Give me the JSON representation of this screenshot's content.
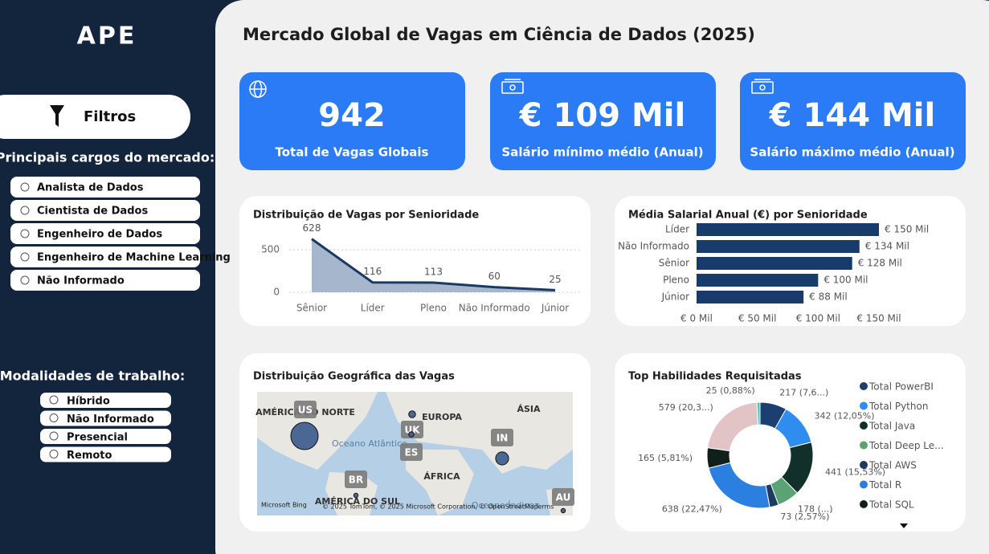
{
  "sidebar": {
    "logo": "APE",
    "filter_button": "Filtros",
    "roles": {
      "title": "Principais cargos do mercado:",
      "options": [
        "Analista de Dados",
        "Cientista de Dados",
        "Engenheiro de Dados",
        "Engenheiro de Machine Learning",
        "Não Informado"
      ]
    },
    "modes": {
      "title": "Modalidades de trabalho:",
      "options": [
        "Híbrido",
        "Não Informado",
        "Presencial",
        "Remoto"
      ]
    }
  },
  "title": "Mercado Global de Vagas em Ciência de Dados (2025)",
  "kpis": [
    {
      "value": 942,
      "label": "Total de Vagas Globais"
    },
    {
      "value": "€ 109 Mil",
      "label": "Salário mínimo médio (Anual)"
    },
    {
      "value": "€ 144 Mil",
      "label": "Salário máximo médio (Anual)"
    }
  ],
  "chart_data": [
    {
      "type": "area",
      "title": "Distribuição de Vagas por Senioridade",
      "categories": [
        "Sênior",
        "Líder",
        "Pleno",
        "Não Informado",
        "Júnior"
      ],
      "values": [
        628,
        116,
        113,
        60,
        25
      ],
      "color": "#1a3a63",
      "ylim": [
        0,
        700
      ],
      "yticks": [
        0,
        500
      ],
      "grid": true
    },
    {
      "type": "hbar",
      "title": "Média Salarial Anual (€) por Senioridade",
      "categories": [
        "Líder",
        "Não Informado",
        "Sênior",
        "Pleno",
        "Júnior"
      ],
      "values": [
        150,
        134,
        128,
        100,
        88
      ],
      "value_labels": [
        "€ 150 Mil",
        "€ 134 Mil",
        "€ 128 Mil",
        "€ 100 Mil",
        "€ 88 Mil"
      ],
      "color": "#173c6b",
      "xlim": [
        0,
        150
      ],
      "xticks": [
        {
          "value": 0,
          "label": "€ 0 Mil"
        },
        {
          "value": 50,
          "label": "€ 50 Mil"
        },
        {
          "value": 100,
          "label": "€ 100 Mil"
        },
        {
          "value": 150,
          "label": "€ 150 Mil"
        }
      ]
    },
    {
      "type": "map",
      "title": "Distribuição Geográfica das Vagas",
      "regions": [
        "AMÉRICA DO NORTE",
        "EUROPA",
        "ÁSIA",
        "ÁFRICA",
        "AMÉRICA DO SUL",
        "Oceano Atlântico",
        "Oceano Índico"
      ],
      "points": [
        {
          "name": "US",
          "size": 400
        },
        {
          "name": "UK",
          "size": 25
        },
        {
          "name": "ES",
          "size": 15
        },
        {
          "name": "IN",
          "size": 90
        },
        {
          "name": "BR",
          "size": 10
        },
        {
          "name": "AU",
          "size": 10
        }
      ],
      "color": "#3a5a8c",
      "attribution": [
        "Microsoft Bing",
        "© 2025 TomTom, © 2025 Microsoft Corporation, © OpenStreetMap",
        "Terms"
      ]
    },
    {
      "type": "donut",
      "title": "Top Habilidades Requisitadas",
      "categories": [
        "Total PowerBI",
        "Total Python",
        "Total Java",
        "Total Deep Le...",
        "Total AWS",
        "Total R",
        "Total SQL",
        null,
        null
      ],
      "values": [
        217,
        342,
        441,
        178,
        73,
        638,
        165,
        579,
        25
      ],
      "value_labels": [
        "217 (7,6...)",
        "342 (12,05%)",
        "441 (15,53%)",
        "178 (...)",
        "73 (2,57%)",
        "638 (22,47%)",
        "165 (5,81%)",
        "579 (20,3...)",
        "25 (0,88%)"
      ],
      "colors": [
        "#1a3f70",
        "#2f8df0",
        "#12302a",
        "#5ba374",
        "#1e3a5f",
        "#2b7fe0",
        "#0f1f1a",
        "#e3c4c6",
        "#3fc7c3"
      ]
    }
  ]
}
